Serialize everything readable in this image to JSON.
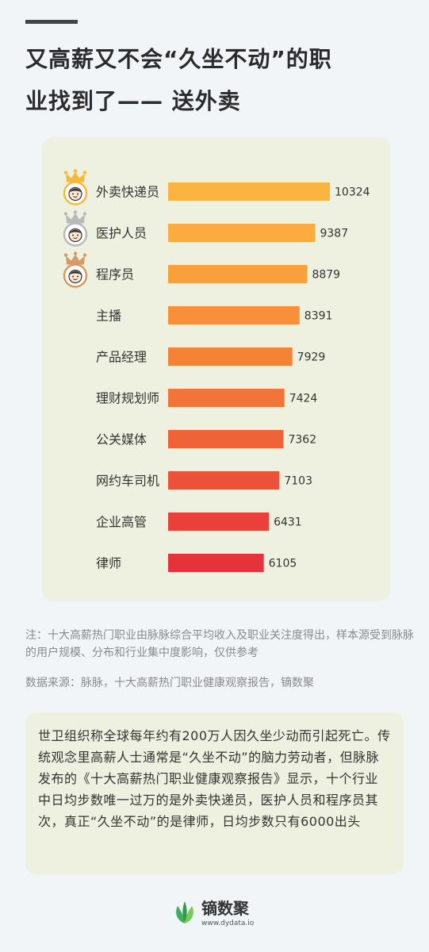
{
  "header": {
    "title_line1": "又高薪又不会“久坐不动”的职",
    "title_line2": "业找到了—— 送外卖"
  },
  "chart_data": {
    "type": "bar",
    "orientation": "horizontal",
    "categories": [
      "外卖快递员",
      "医护人员",
      "程序员",
      "主播",
      "产品经理",
      "理财规划师",
      "公关媒体",
      "网约车司机",
      "企业高管",
      "律师"
    ],
    "values": [
      10324,
      9387,
      8879,
      8391,
      7929,
      7424,
      7362,
      7103,
      6431,
      6105
    ],
    "colors": [
      "#fbb440",
      "#fbab3f",
      "#f99f3c",
      "#f79038",
      "#f58336",
      "#f27438",
      "#f06339",
      "#ec523a",
      "#e9413a",
      "#e6323a"
    ],
    "rank_medals": [
      "gold",
      "silver",
      "bronze"
    ],
    "title": "",
    "xlabel": "",
    "ylabel": ""
  },
  "notes": {
    "note": "注：十大高薪热门职业由脉脉综合平均收入及职业关注度得出，样本源受到脉脉的用户规模、分布和行业集中度影响，仅供参考",
    "source": "数据来源：脉脉，十大高薪热门职业健康观察报告，镝数聚"
  },
  "summary": {
    "text": "世卫组织称全球每年约有200万人因久坐少动而引起死亡。传统观念里高薪人士通常是“久坐不动”的脑力劳动者，但脉脉发布的《十大高薪热门职业健康观察报告》显示，十个行业中日均步数唯一过万的是外卖快递员，医护人员和程序员其次，真正“久坐不动”的是律师，日均步数只有6000出头"
  },
  "brand": {
    "name": "镝数聚",
    "url": "www.dydata.io",
    "icon": "leaf-logo-icon"
  }
}
